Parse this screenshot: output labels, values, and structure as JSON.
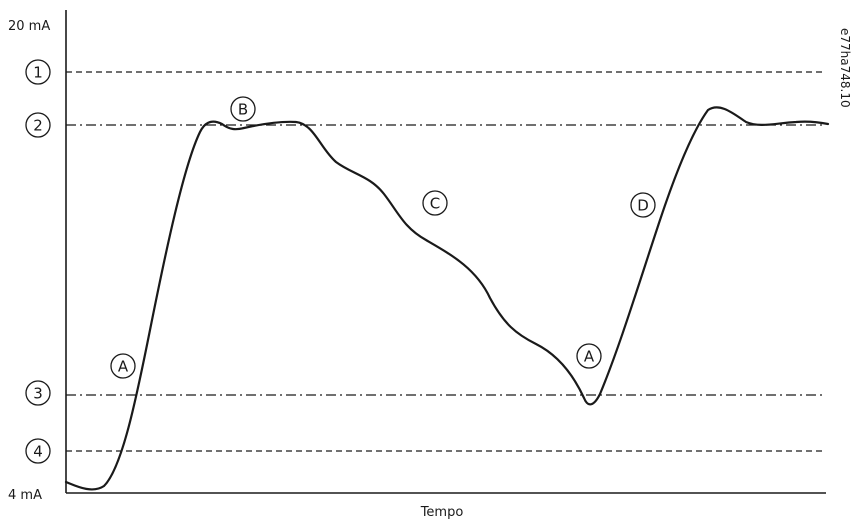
{
  "diagram": {
    "y_axis": {
      "top_label": "20 mA",
      "bottom_label": "4 mA"
    },
    "x_axis": {
      "label": "Tempo"
    },
    "reference_lines": [
      {
        "marker": "1",
        "style": "dashed"
      },
      {
        "marker": "2",
        "style": "dash-dot"
      },
      {
        "marker": "3",
        "style": "dash-dot"
      },
      {
        "marker": "4",
        "style": "dashed"
      }
    ],
    "phase_markers": [
      {
        "label": "A",
        "phase": "rise"
      },
      {
        "label": "B",
        "phase": "top"
      },
      {
        "label": "C",
        "phase": "fall"
      },
      {
        "label": "A",
        "phase": "rise"
      },
      {
        "label": "D",
        "phase": "rise"
      }
    ],
    "figure_id": "e77ha748.10",
    "colors": {
      "ink": "#1a1a1a",
      "background": "#ffffff"
    }
  }
}
